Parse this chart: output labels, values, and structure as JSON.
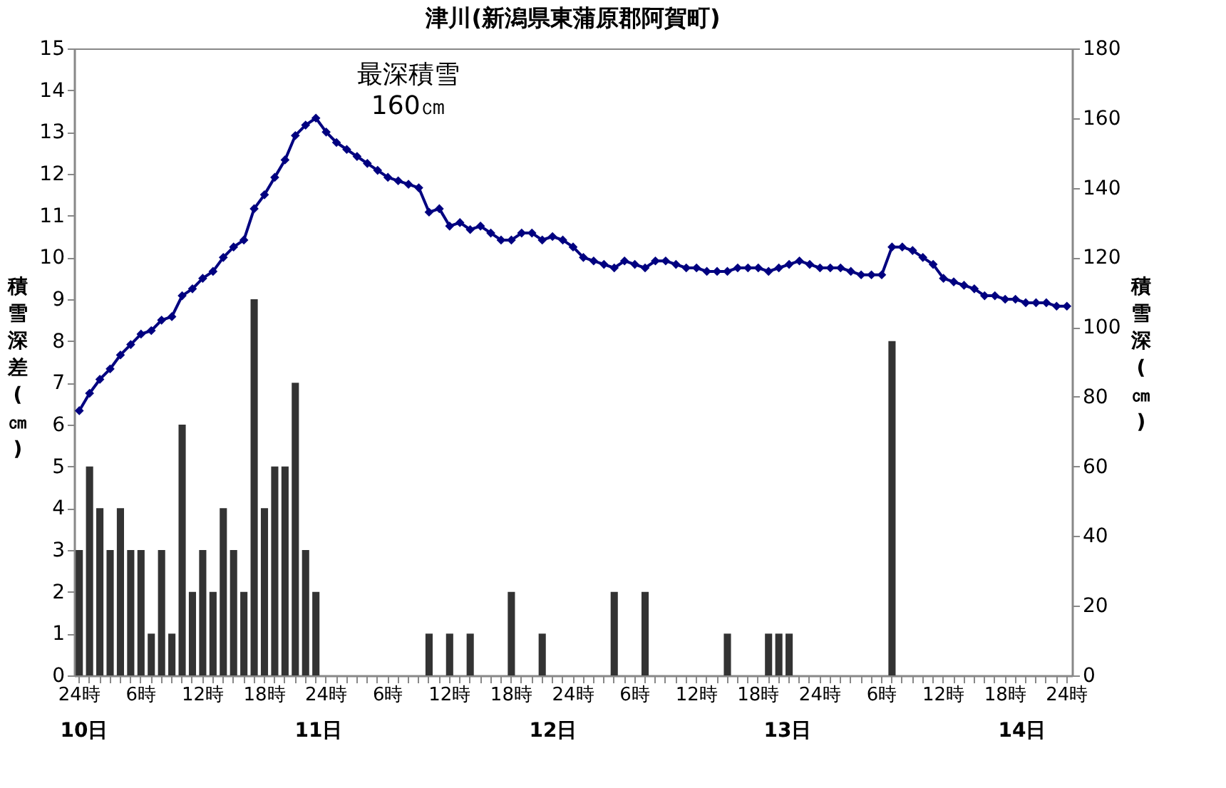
{
  "chart_data": {
    "type": "bar",
    "title": "津川(新潟県東蒲原郡阿賀町)",
    "ylabel": "積雪深差(㎝)",
    "y2label": "積雪深(㎝)",
    "categories": [
      "24時",
      null,
      null,
      null,
      null,
      null,
      "6時",
      null,
      null,
      null,
      null,
      null,
      "12時",
      null,
      null,
      null,
      null,
      null,
      "18時",
      null,
      null,
      null,
      null,
      null,
      "24時",
      null,
      null,
      null,
      null,
      null,
      "6時",
      null,
      null,
      null,
      null,
      null,
      "12時",
      null,
      null,
      null,
      null,
      null,
      "18時",
      null,
      null,
      null,
      null,
      null,
      "24時",
      null,
      null,
      null,
      null,
      null,
      "6時",
      null,
      null,
      null,
      null,
      null,
      "12時",
      null,
      null,
      null,
      null,
      null,
      "18時",
      null,
      null,
      null,
      null,
      null,
      "24時",
      null,
      null,
      null,
      null,
      null,
      "6時",
      null,
      null,
      null,
      null,
      null,
      "12時",
      null,
      null,
      null,
      null,
      null,
      "18時",
      null,
      null,
      null,
      null,
      null,
      "24時"
    ],
    "series": [
      {
        "color": "#333333",
        "values": [
          3,
          5,
          4,
          3,
          4,
          3,
          3,
          1,
          3,
          1,
          6,
          2,
          3,
          2,
          4,
          3,
          2,
          9,
          4,
          5,
          5,
          7,
          3,
          2,
          0,
          0,
          0,
          0,
          0,
          0,
          0,
          0,
          0,
          0,
          1,
          0,
          1,
          0,
          1,
          0,
          0,
          0,
          2,
          0,
          0,
          1,
          0,
          0,
          0,
          0,
          0,
          0,
          2,
          0,
          0,
          2,
          0,
          0,
          0,
          0,
          0,
          0,
          0,
          1,
          0,
          0,
          0,
          1,
          1,
          1,
          0,
          0,
          0,
          0,
          0,
          0,
          0,
          0,
          0,
          8,
          0,
          0,
          0,
          0,
          0,
          0,
          0,
          0,
          0,
          0,
          0,
          0,
          0,
          0,
          0,
          0,
          0
        ]
      },
      {
        "type": "line",
        "axis": "y2",
        "color": "#000080",
        "marker": "diamond",
        "line_style": "solid",
        "values": [
          76,
          81,
          85,
          88,
          92,
          95,
          98,
          99,
          102,
          103,
          109,
          111,
          114,
          116,
          120,
          123,
          125,
          134,
          138,
          143,
          148,
          155,
          158,
          160,
          156,
          153,
          151,
          149,
          147,
          145,
          143,
          142,
          141,
          140,
          133,
          134,
          129,
          130,
          128,
          129,
          127,
          125,
          125,
          127,
          127,
          125,
          126,
          125,
          123,
          120,
          119,
          118,
          117,
          119,
          118,
          117,
          119,
          119,
          118,
          117,
          117,
          116,
          116,
          116,
          117,
          117,
          117,
          116,
          117,
          118,
          119,
          118,
          117,
          117,
          117,
          116,
          115,
          115,
          115,
          123,
          123,
          122,
          120,
          118,
          114,
          113,
          112,
          111,
          109,
          109,
          108,
          108,
          107,
          107,
          107,
          106,
          106
        ]
      }
    ],
    "ylim": [
      0,
      15
    ],
    "yticks": [
      0,
      1,
      2,
      3,
      4,
      5,
      6,
      7,
      8,
      9,
      10,
      11,
      12,
      13,
      14,
      15
    ],
    "y2lim": [
      0,
      180
    ],
    "y2ticks": [
      0,
      20,
      40,
      60,
      80,
      100,
      120,
      140,
      160,
      180
    ],
    "grid": false,
    "annotations": [
      "最深積雪\n160㎝",
      "10日",
      "11日",
      "12日",
      "13日",
      "14日"
    ]
  }
}
